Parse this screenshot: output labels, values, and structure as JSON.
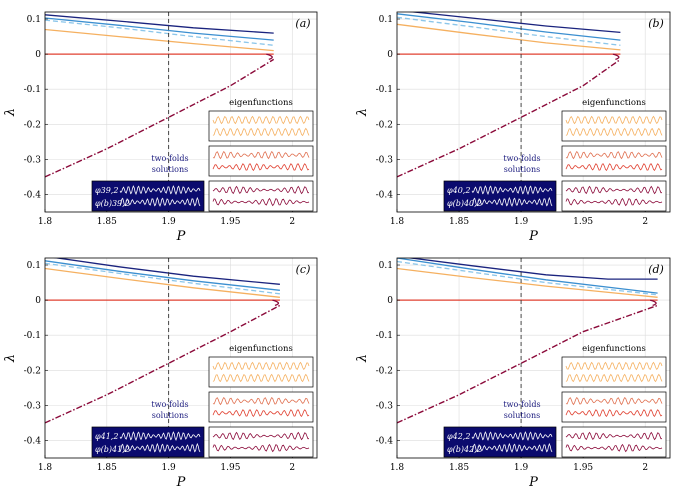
{
  "chart_data": [
    {
      "type": "line",
      "panel_label": "(a)",
      "xlabel": "P",
      "ylabel": "λ",
      "xlim": [
        1.8,
        2.02
      ],
      "ylim": [
        -0.45,
        0.12
      ],
      "x_ticks": [
        "1.8",
        "1.85",
        "1.9",
        "1.95",
        "2"
      ],
      "y_ticks": [
        "0.1",
        "0",
        "-0.1",
        "-0.2",
        "-0.3",
        "-0.4"
      ],
      "grid": true,
      "vline_x": 1.9,
      "branch_end_P": 1.985,
      "series": [
        {
          "color": "#1a237e",
          "style": "solid",
          "x": [
            1.8,
            1.86,
            1.92,
            1.985
          ],
          "y": [
            0.112,
            0.094,
            0.075,
            0.06
          ]
        },
        {
          "color": "#3b8fd0",
          "style": "solid",
          "x": [
            1.8,
            1.86,
            1.92,
            1.985
          ],
          "y": [
            0.103,
            0.082,
            0.06,
            0.04
          ]
        },
        {
          "color": "#8cc6ea",
          "style": "dashed",
          "x": [
            1.8,
            1.86,
            1.92,
            1.985
          ],
          "y": [
            0.097,
            0.075,
            0.05,
            0.025
          ]
        },
        {
          "color": "#f5b060",
          "style": "solid",
          "x": [
            1.8,
            1.86,
            1.92,
            1.985
          ],
          "y": [
            0.07,
            0.05,
            0.03,
            0.01
          ]
        },
        {
          "color": "#e04030",
          "style": "solid",
          "x": [
            1.8,
            1.985
          ],
          "y": [
            0.0,
            0.0
          ]
        },
        {
          "color": "#8b0a3a",
          "style": "dashdot",
          "x": [
            1.8,
            1.85,
            1.9,
            1.95,
            1.985
          ],
          "y": [
            -0.35,
            -0.27,
            -0.18,
            -0.09,
            -0.015
          ]
        }
      ],
      "annotations": {
        "eigen_title": "eigenfunctions",
        "twofold_1": "two-folds",
        "twofold_2": "solutions",
        "phi_top": "φ39,2",
        "phi_bottom": "φ(b)39,2"
      }
    },
    {
      "type": "line",
      "panel_label": "(b)",
      "xlabel": "P",
      "ylabel": "λ",
      "xlim": [
        1.8,
        2.02
      ],
      "ylim": [
        -0.45,
        0.12
      ],
      "x_ticks": [
        "1.8",
        "1.85",
        "1.9",
        "1.95",
        "2"
      ],
      "y_ticks": [
        "0.1",
        "0",
        "-0.1",
        "-0.2",
        "-0.3",
        "-0.4"
      ],
      "grid": true,
      "vline_x": 1.9,
      "branch_end_P": 1.98,
      "series": [
        {
          "color": "#1a237e",
          "style": "solid",
          "x": [
            1.8,
            1.86,
            1.92,
            1.98
          ],
          "y": [
            0.125,
            0.103,
            0.08,
            0.062
          ]
        },
        {
          "color": "#3b8fd0",
          "style": "solid",
          "x": [
            1.8,
            1.86,
            1.92,
            1.98
          ],
          "y": [
            0.115,
            0.09,
            0.063,
            0.04
          ]
        },
        {
          "color": "#8cc6ea",
          "style": "dashed",
          "x": [
            1.8,
            1.86,
            1.92,
            1.98
          ],
          "y": [
            0.105,
            0.078,
            0.05,
            0.025
          ]
        },
        {
          "color": "#f5b060",
          "style": "solid",
          "x": [
            1.8,
            1.86,
            1.92,
            1.98
          ],
          "y": [
            0.085,
            0.058,
            0.032,
            0.012
          ]
        },
        {
          "color": "#e04030",
          "style": "solid",
          "x": [
            1.8,
            1.98
          ],
          "y": [
            0.0,
            0.0
          ]
        },
        {
          "color": "#8b0a3a",
          "style": "dashdot",
          "x": [
            1.8,
            1.85,
            1.9,
            1.95,
            1.98
          ],
          "y": [
            -0.35,
            -0.27,
            -0.18,
            -0.09,
            -0.015
          ]
        }
      ],
      "annotations": {
        "eigen_title": "eigenfunctions",
        "twofold_1": "two-folds",
        "twofold_2": "solutions",
        "phi_top": "φ40,2",
        "phi_bottom": "φ(b)40,2"
      }
    },
    {
      "type": "line",
      "panel_label": "(c)",
      "xlabel": "P",
      "ylabel": "λ",
      "xlim": [
        1.8,
        2.02
      ],
      "ylim": [
        -0.45,
        0.12
      ],
      "x_ticks": [
        "1.8",
        "1.85",
        "1.9",
        "1.95",
        "2"
      ],
      "y_ticks": [
        "0.1",
        "0",
        "-0.1",
        "-0.2",
        "-0.3",
        "-0.4"
      ],
      "grid": true,
      "vline_x": 1.9,
      "branch_end_P": 1.99,
      "series": [
        {
          "color": "#1a237e",
          "style": "solid",
          "x": [
            1.8,
            1.86,
            1.92,
            1.99
          ],
          "y": [
            0.125,
            0.095,
            0.068,
            0.045
          ]
        },
        {
          "color": "#3b8fd0",
          "style": "solid",
          "x": [
            1.8,
            1.86,
            1.92,
            1.99
          ],
          "y": [
            0.112,
            0.082,
            0.055,
            0.028
          ]
        },
        {
          "color": "#8cc6ea",
          "style": "dashed",
          "x": [
            1.8,
            1.86,
            1.92,
            1.99
          ],
          "y": [
            0.105,
            0.076,
            0.048,
            0.018
          ]
        },
        {
          "color": "#f5b060",
          "style": "solid",
          "x": [
            1.8,
            1.86,
            1.92,
            1.99
          ],
          "y": [
            0.09,
            0.062,
            0.035,
            0.008
          ]
        },
        {
          "color": "#e04030",
          "style": "solid",
          "x": [
            1.8,
            1.99
          ],
          "y": [
            0.0,
            0.0
          ]
        },
        {
          "color": "#8b0a3a",
          "style": "dashdot",
          "x": [
            1.8,
            1.85,
            1.9,
            1.95,
            1.99
          ],
          "y": [
            -0.35,
            -0.27,
            -0.18,
            -0.09,
            -0.015
          ]
        }
      ],
      "annotations": {
        "eigen_title": "eigenfunctions",
        "twofold_1": "two-folds",
        "twofold_2": "solutions",
        "phi_top": "φ41,2",
        "phi_bottom": "φ(b)41,2"
      }
    },
    {
      "type": "line",
      "panel_label": "(d)",
      "xlabel": "P",
      "ylabel": "λ",
      "xlim": [
        1.8,
        2.02
      ],
      "ylim": [
        -0.45,
        0.12
      ],
      "x_ticks": [
        "1.8",
        "1.85",
        "1.9",
        "1.95",
        "2"
      ],
      "y_ticks": [
        "0.1",
        "0",
        "-0.1",
        "-0.2",
        "-0.3",
        "-0.4"
      ],
      "grid": true,
      "vline_x": 1.9,
      "branch_end_P": 2.01,
      "series": [
        {
          "color": "#1a237e",
          "style": "solid",
          "x": [
            1.8,
            1.86,
            1.92,
            1.97,
            2.01
          ],
          "y": [
            0.125,
            0.098,
            0.072,
            0.06,
            0.06
          ]
        },
        {
          "color": "#3b8fd0",
          "style": "solid",
          "x": [
            1.8,
            1.86,
            1.92,
            2.01
          ],
          "y": [
            0.12,
            0.088,
            0.058,
            0.02
          ]
        },
        {
          "color": "#8cc6ea",
          "style": "dashed",
          "x": [
            1.8,
            1.86,
            1.92,
            2.01
          ],
          "y": [
            0.11,
            0.08,
            0.05,
            0.015
          ]
        },
        {
          "color": "#f5b060",
          "style": "solid",
          "x": [
            1.8,
            1.86,
            1.92,
            2.01
          ],
          "y": [
            0.09,
            0.064,
            0.04,
            0.008
          ]
        },
        {
          "color": "#e04030",
          "style": "solid",
          "x": [
            1.8,
            2.01
          ],
          "y": [
            0.0,
            0.0
          ]
        },
        {
          "color": "#8b0a3a",
          "style": "dashdot",
          "x": [
            1.8,
            1.85,
            1.9,
            1.95,
            2.01
          ],
          "y": [
            -0.35,
            -0.27,
            -0.18,
            -0.09,
            -0.015
          ]
        }
      ],
      "annotations": {
        "eigen_title": "eigenfunctions",
        "twofold_1": "two-folds",
        "twofold_2": "solutions",
        "phi_top": "φ42,2",
        "phi_bottom": "φ(b)42,2"
      }
    }
  ]
}
